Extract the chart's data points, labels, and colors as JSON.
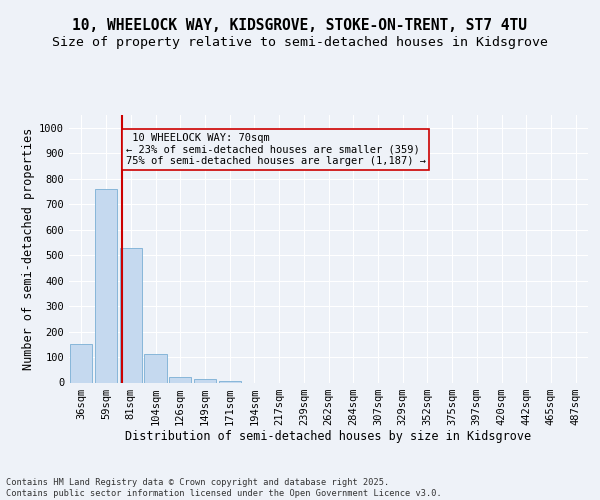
{
  "title_line1": "10, WHEELOCK WAY, KIDSGROVE, STOKE-ON-TRENT, ST7 4TU",
  "title_line2": "Size of property relative to semi-detached houses in Kidsgrove",
  "xlabel": "Distribution of semi-detached houses by size in Kidsgrove",
  "ylabel": "Number of semi-detached properties",
  "footnote": "Contains HM Land Registry data © Crown copyright and database right 2025.\nContains public sector information licensed under the Open Government Licence v3.0.",
  "bin_labels": [
    "36sqm",
    "59sqm",
    "81sqm",
    "104sqm",
    "126sqm",
    "149sqm",
    "171sqm",
    "194sqm",
    "217sqm",
    "239sqm",
    "262sqm",
    "284sqm",
    "307sqm",
    "329sqm",
    "352sqm",
    "375sqm",
    "397sqm",
    "420sqm",
    "442sqm",
    "465sqm",
    "487sqm"
  ],
  "bar_values": [
    152,
    759,
    528,
    113,
    20,
    14,
    7,
    0,
    0,
    0,
    0,
    0,
    0,
    0,
    0,
    0,
    0,
    0,
    0,
    0,
    0
  ],
  "bar_color": "#c5d9ef",
  "bar_edge_color": "#7aafd4",
  "vline_color": "#cc0000",
  "vline_x": 1.65,
  "annotation_box_color": "#cc0000",
  "property_label": "10 WHEELOCK WAY: 70sqm",
  "pct_smaller": 23,
  "count_smaller": 359,
  "pct_larger": 75,
  "count_larger": 1187,
  "ylim": [
    0,
    1050
  ],
  "yticks": [
    0,
    100,
    200,
    300,
    400,
    500,
    600,
    700,
    800,
    900,
    1000
  ],
  "background_color": "#eef2f8",
  "grid_color": "#ffffff",
  "title_fontsize": 10.5,
  "subtitle_fontsize": 9.5,
  "axis_label_fontsize": 8.5,
  "tick_fontsize": 7.5,
  "annot_fontsize": 7.5
}
